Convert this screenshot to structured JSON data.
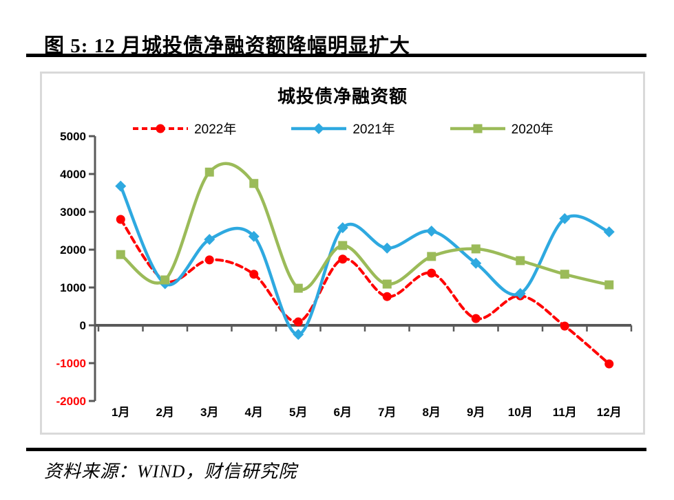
{
  "header": {
    "title": "图 5: 12 月城投债净融资额降幅明显扩大"
  },
  "footer": {
    "source_text": "资料来源：WIND，财信研究院"
  },
  "chart_data": {
    "type": "line",
    "title": "城投债净融资额",
    "categories": [
      "1月",
      "2月",
      "3月",
      "4月",
      "5月",
      "6月",
      "7月",
      "8月",
      "9月",
      "10月",
      "11月",
      "12月"
    ],
    "series": [
      {
        "name": "2022年",
        "color": "#ff0000",
        "style": "dashed",
        "marker": "circle",
        "values": [
          2800,
          1180,
          1730,
          1350,
          90,
          1750,
          760,
          1380,
          180,
          780,
          -20,
          -1020
        ]
      },
      {
        "name": "2021年",
        "color": "#2ea9e0",
        "style": "solid",
        "marker": "diamond",
        "values": [
          3680,
          1100,
          2270,
          2350,
          -240,
          2580,
          2040,
          2490,
          1640,
          840,
          2820,
          2470
        ]
      },
      {
        "name": "2020年",
        "color": "#9bbb59",
        "style": "solid",
        "marker": "square",
        "values": [
          1870,
          1200,
          4050,
          3750,
          980,
          2110,
          1090,
          1820,
          2020,
          1710,
          1350,
          1070
        ]
      }
    ],
    "y_ticks": [
      5000,
      4000,
      3000,
      2000,
      1000,
      0,
      -1000,
      -2000
    ],
    "ylim": [
      -2000,
      5000
    ],
    "grid": false,
    "legend_position": "top",
    "colors": {
      "axis": "#595959",
      "negative_tick": "#ff0000",
      "border": "#d9d9d9"
    }
  }
}
